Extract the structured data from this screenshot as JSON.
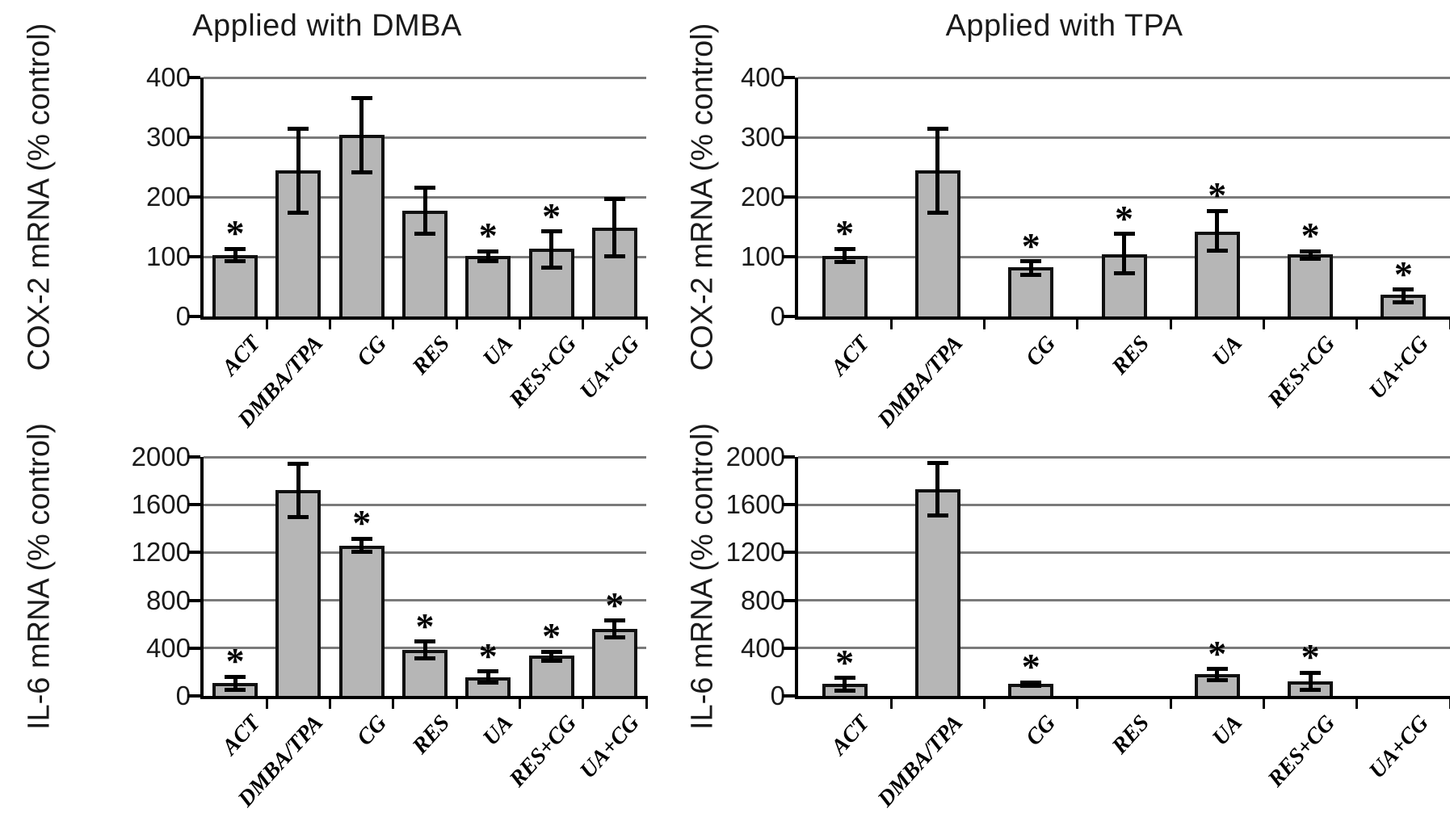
{
  "style": {
    "bar_fill": "#b6b6b6",
    "bar_border": "#101010",
    "grid_color": "#7a7a7a",
    "axis_color": "#000000",
    "significance_marker": "*"
  },
  "chart_data": [
    {
      "id": "cox2-dmba",
      "type": "bar",
      "title": "Applied with DMBA",
      "ylabel": "COX-2 mRNA (% control)",
      "xlabel": "",
      "ylim": [
        0,
        400
      ],
      "yticks": [
        0,
        100,
        200,
        300,
        400
      ],
      "grid": true,
      "legend": false,
      "categories": [
        "ACT",
        "DMBA/TPA",
        "CG",
        "RES",
        "UA",
        "RES+CG",
        "UA+CG"
      ],
      "values": [
        103,
        244,
        304,
        177,
        101,
        113,
        148
      ],
      "err_low": [
        92,
        174,
        241,
        138,
        93,
        82,
        101
      ],
      "err_high": [
        113,
        314,
        365,
        216,
        109,
        142,
        197
      ],
      "significant": [
        true,
        false,
        false,
        false,
        true,
        true,
        false
      ]
    },
    {
      "id": "cox2-tpa",
      "type": "bar",
      "title": "Applied with TPA",
      "ylabel": "COX-2 mRNA (% control)",
      "xlabel": "",
      "ylim": [
        0,
        400
      ],
      "yticks": [
        0,
        100,
        200,
        300,
        400
      ],
      "grid": true,
      "legend": false,
      "categories": [
        "ACT",
        "DMBA/TPA",
        "CG",
        "RES",
        "UA",
        "RES+CG",
        "UA+CG"
      ],
      "values": [
        102,
        244,
        82,
        104,
        142,
        104,
        36
      ],
      "err_low": [
        91,
        174,
        70,
        72,
        110,
        96,
        24
      ],
      "err_high": [
        113,
        314,
        92,
        138,
        177,
        109,
        45
      ],
      "significant": [
        true,
        false,
        true,
        true,
        true,
        true,
        true
      ]
    },
    {
      "id": "il6-dmba",
      "type": "bar",
      "title": "",
      "ylabel": "IL-6 mRNA (% control)",
      "xlabel": "",
      "ylim": [
        0,
        2000
      ],
      "yticks": [
        0,
        400,
        800,
        1200,
        1600,
        2000
      ],
      "grid": true,
      "legend": false,
      "categories": [
        "ACT",
        "DMBA/TPA",
        "CG",
        "RES",
        "UA",
        "RES+CG",
        "UA+CG"
      ],
      "values": [
        105,
        1720,
        1260,
        385,
        158,
        335,
        560
      ],
      "err_low": [
        50,
        1500,
        1205,
        315,
        112,
        297,
        490
      ],
      "err_high": [
        162,
        1940,
        1315,
        455,
        205,
        370,
        630
      ],
      "significant": [
        true,
        false,
        true,
        true,
        true,
        true,
        true
      ]
    },
    {
      "id": "il6-tpa",
      "type": "bar",
      "title": "",
      "ylabel": "IL-6 mRNA (% control)",
      "xlabel": "",
      "ylim": [
        0,
        2000
      ],
      "yticks": [
        0,
        400,
        800,
        1200,
        1600,
        2000
      ],
      "grid": true,
      "legend": false,
      "categories": [
        "ACT",
        "DMBA/TPA",
        "CG",
        "RES",
        "UA",
        "RES+CG",
        "UA+CG"
      ],
      "values": [
        100,
        1730,
        100,
        null,
        180,
        125,
        null
      ],
      "err_low": [
        45,
        1510,
        86,
        null,
        135,
        50,
        null
      ],
      "err_high": [
        152,
        1950,
        114,
        null,
        225,
        196,
        null
      ],
      "significant": [
        true,
        false,
        true,
        false,
        true,
        true,
        false
      ]
    }
  ]
}
